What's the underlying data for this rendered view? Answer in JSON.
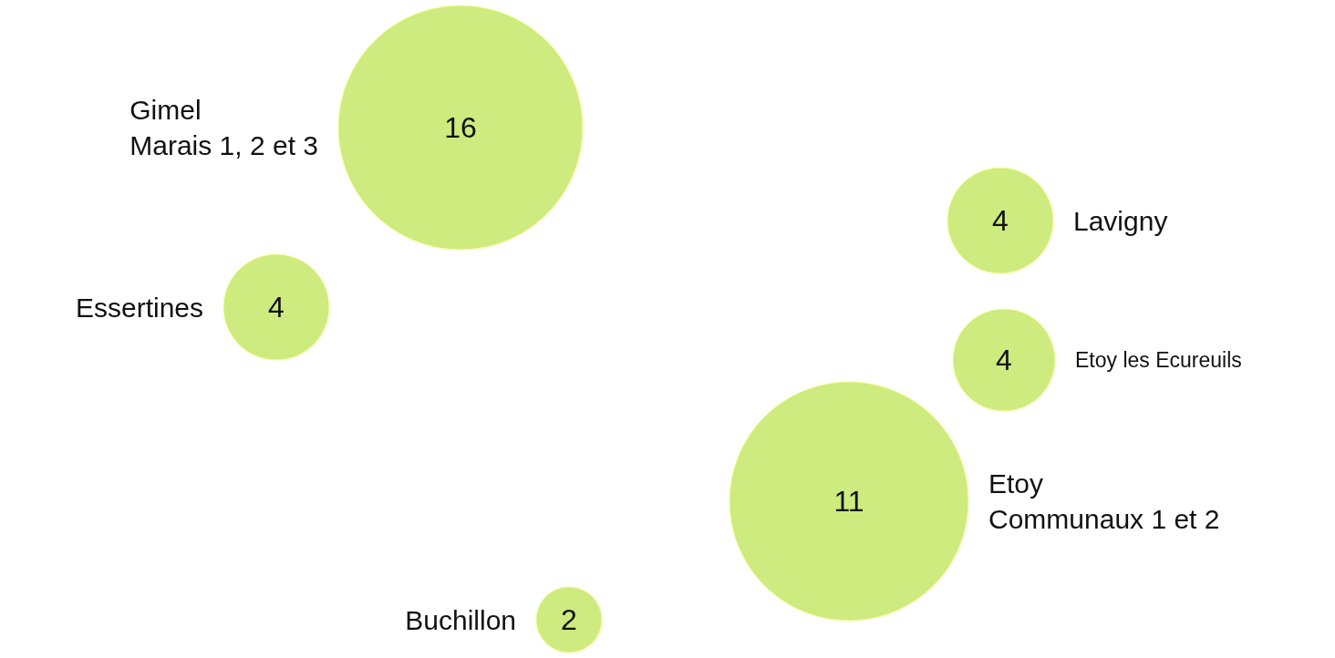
{
  "chart_data": {
    "type": "other",
    "color": "#cdeb7e",
    "data_labels": true,
    "categories": [
      "Gimel\nMarais 1, 2 et 3",
      "Essertines",
      "Lavigny",
      "Etoy les Ecureuils",
      "Etoy\nCommunaux 1 et 2",
      "Buchillon"
    ],
    "values": [
      16,
      4,
      4,
      4,
      11,
      2
    ]
  }
}
